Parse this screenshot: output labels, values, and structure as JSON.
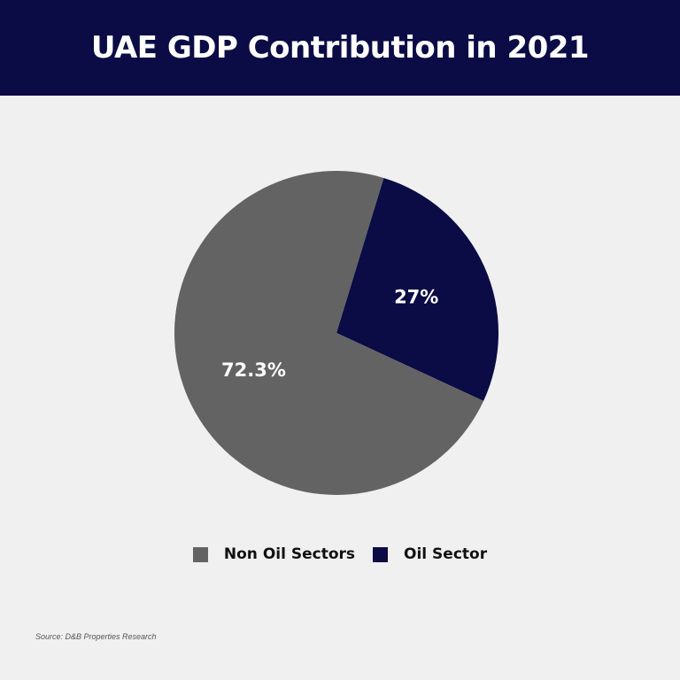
{
  "header": {
    "title": "UAE GDP Contribution in 2021"
  },
  "chart_data": {
    "type": "pie",
    "title": "UAE GDP Contribution in 2021",
    "slices": [
      {
        "name": "Non Oil Sectors",
        "value": 72.3,
        "label": "72.3%",
        "color": "#636363"
      },
      {
        "name": "Oil Sector",
        "value": 27,
        "label": "27%",
        "color": "#0b0b45"
      }
    ],
    "legend_position": "bottom"
  },
  "legend": {
    "items": [
      {
        "label": "Non Oil Sectors",
        "color": "#636363"
      },
      {
        "label": "Oil Sector",
        "color": "#0b0b45"
      }
    ]
  },
  "source": "Source: D&B Properties Research"
}
